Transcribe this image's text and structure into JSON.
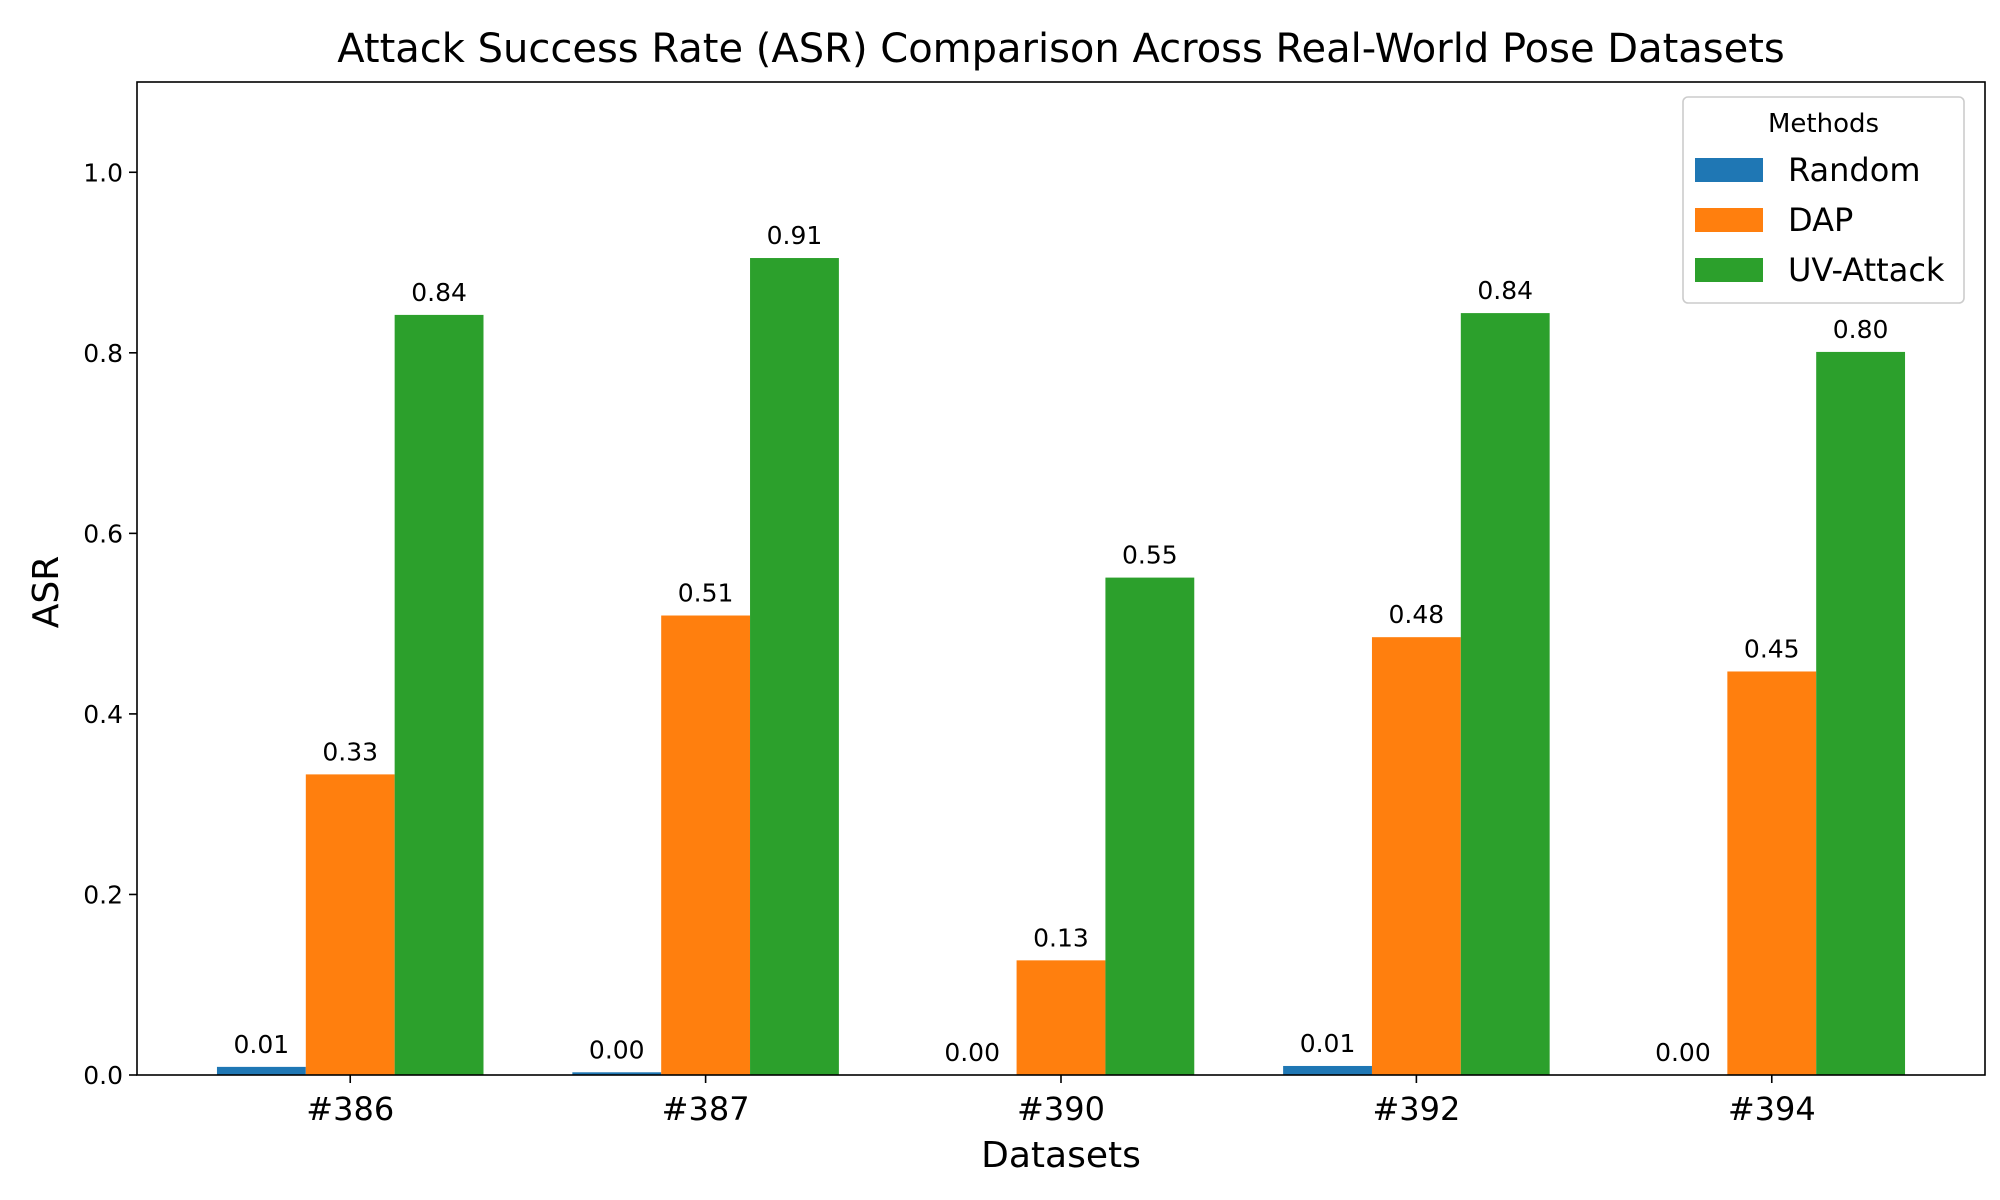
{
  "chart_data": {
    "type": "bar",
    "title": "Attack Success Rate (ASR) Comparison Across Real-World Pose Datasets",
    "xlabel": "Datasets",
    "ylabel": "ASR",
    "ylim": [
      0,
      1.1
    ],
    "yticks": [
      0.0,
      0.2,
      0.4,
      0.6,
      0.8,
      1.0
    ],
    "ytick_labels": [
      "0.0",
      "0.2",
      "0.4",
      "0.6",
      "0.8",
      "1.0"
    ],
    "categories": [
      "#386",
      "#387",
      "#390",
      "#392",
      "#394"
    ],
    "legend": {
      "title": "Methods",
      "position": "top-right"
    },
    "series": [
      {
        "name": "Random",
        "color": "#1f77b4",
        "values": [
          0.009,
          0.003,
          0.0,
          0.01,
          0.0
        ],
        "labels": [
          "0.01",
          "0.00",
          "0.00",
          "0.01",
          "0.00"
        ]
      },
      {
        "name": "DAP",
        "color": "#ff7f0e",
        "values": [
          0.333,
          0.509,
          0.127,
          0.485,
          0.447
        ],
        "labels": [
          "0.33",
          "0.51",
          "0.13",
          "0.48",
          "0.45"
        ]
      },
      {
        "name": "UV-Attack",
        "color": "#2ca02c",
        "values": [
          0.842,
          0.905,
          0.551,
          0.844,
          0.801
        ],
        "labels": [
          "0.84",
          "0.91",
          "0.55",
          "0.84",
          "0.80"
        ]
      }
    ],
    "grid": false
  }
}
